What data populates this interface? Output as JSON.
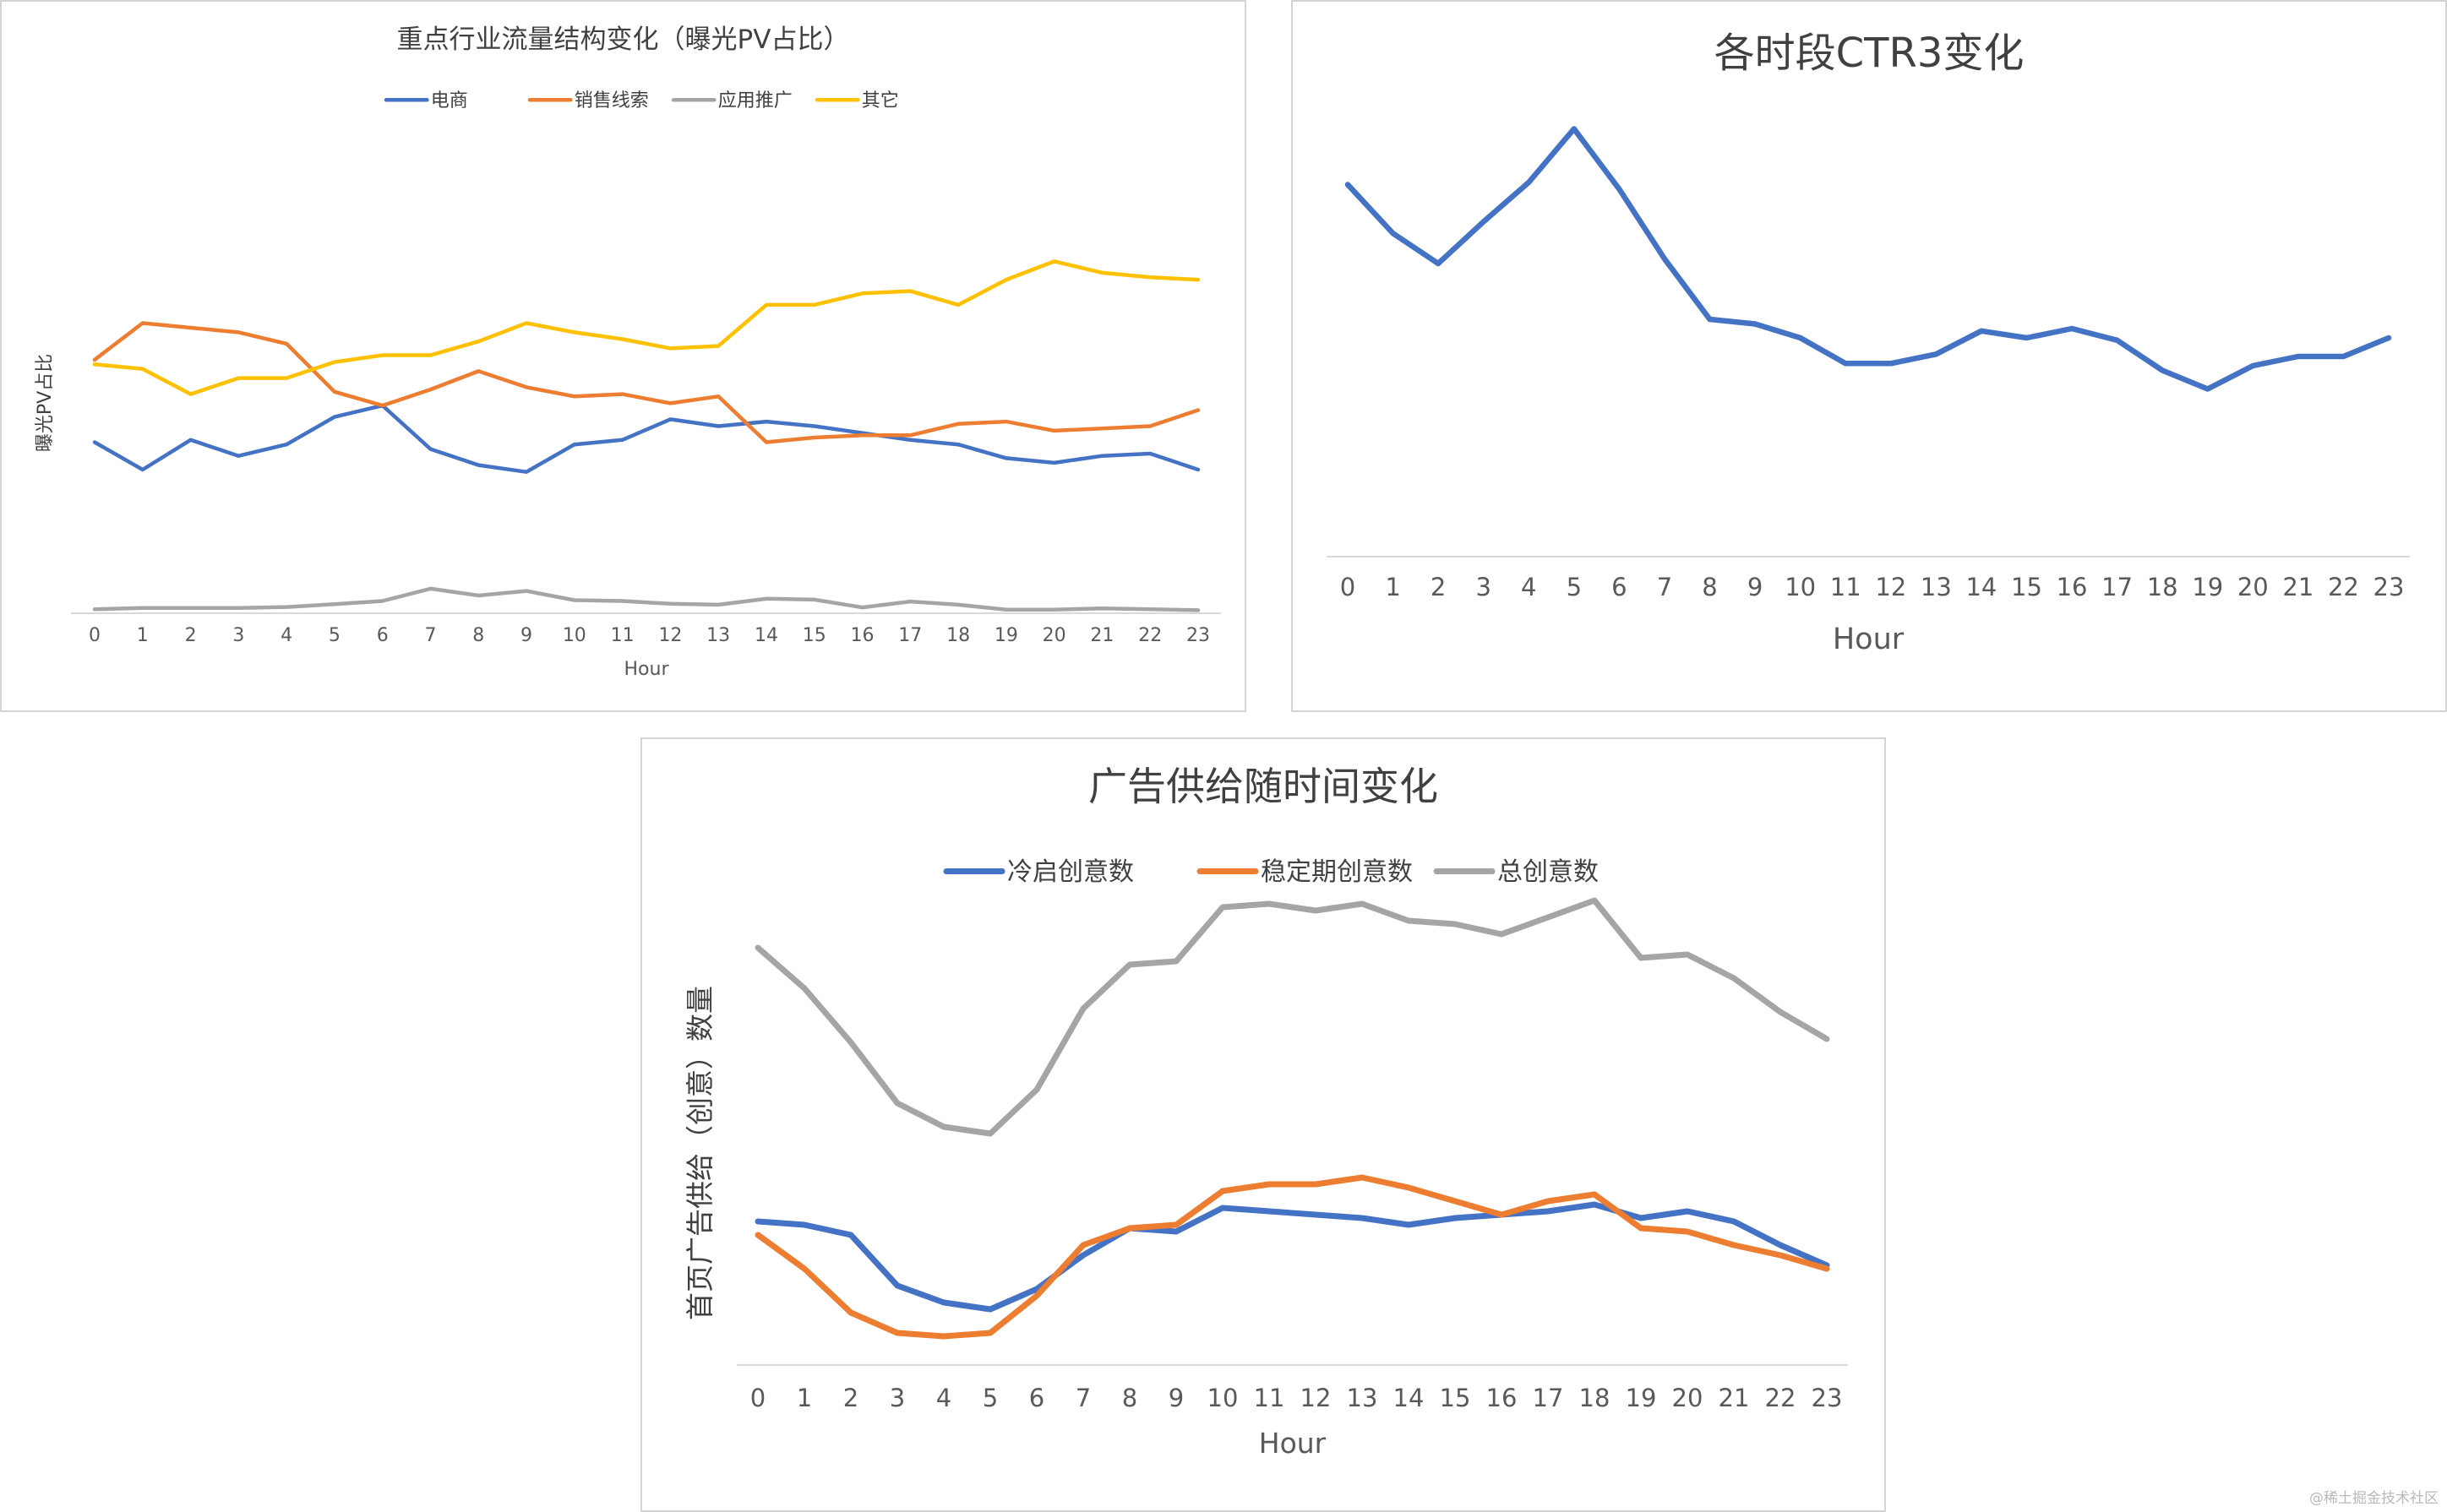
{
  "watermark": "@稀土掘金技术社区",
  "chart_data": [
    {
      "type": "line",
      "title": "重点行业流量结构变化（曝光PV占比）",
      "xlabel": "Hour",
      "ylabel": "曝光PV占比",
      "legend_position": "top",
      "grid": false,
      "categories": [
        "0",
        "1",
        "2",
        "3",
        "4",
        "5",
        "6",
        "7",
        "8",
        "9",
        "10",
        "11",
        "12",
        "13",
        "14",
        "15",
        "16",
        "17",
        "18",
        "19",
        "20",
        "21",
        "22",
        "23"
      ],
      "ylim": [
        0,
        100
      ],
      "series": [
        {
          "name": "电商",
          "color": "#4472C4",
          "values": [
            37,
            31,
            37.5,
            34,
            36.5,
            42.5,
            45,
            35.5,
            32,
            30.5,
            36.5,
            37.5,
            42,
            40.5,
            41.5,
            40.5,
            39,
            37.5,
            36.5,
            33.5,
            32.5,
            34,
            34.5,
            31
          ]
        },
        {
          "name": "销售线索",
          "color": "#ED7D31",
          "values": [
            55,
            63,
            62,
            61,
            58.5,
            48,
            45,
            48.5,
            52.5,
            49,
            47,
            47.5,
            45.5,
            47,
            37,
            38,
            38.5,
            38.5,
            41,
            41.5,
            39.5,
            40,
            40.5,
            44
          ]
        },
        {
          "name": "应用推广",
          "color": "#A5A5A5",
          "values": [
            0.5,
            0.8,
            0.8,
            0.8,
            1,
            1.6,
            2.3,
            5,
            3.5,
            4.5,
            2.5,
            2.3,
            1.7,
            1.5,
            2.8,
            2.6,
            0.9,
            2.2,
            1.5,
            0.4,
            0.4,
            0.7,
            0.5,
            0.3
          ]
        },
        {
          "name": "其它",
          "color": "#FFC000",
          "values": [
            54,
            53,
            47.5,
            51,
            51,
            54.5,
            56,
            56,
            59,
            63,
            61,
            59.5,
            57.5,
            58,
            67,
            67,
            69.5,
            70,
            67,
            72.5,
            76.5,
            74,
            73,
            72.5
          ]
        }
      ]
    },
    {
      "type": "line",
      "title": "各时段CTR3变化",
      "xlabel": "Hour",
      "ylabel": "",
      "grid": false,
      "categories": [
        "0",
        "1",
        "2",
        "3",
        "4",
        "5",
        "6",
        "7",
        "8",
        "9",
        "10",
        "11",
        "12",
        "13",
        "14",
        "15",
        "16",
        "17",
        "18",
        "19",
        "20",
        "21",
        "22",
        "23"
      ],
      "ylim": [
        0,
        100
      ],
      "series": [
        {
          "name": "CTR3",
          "color": "#4472C4",
          "values": [
            77,
            66.5,
            60,
            69,
            77.5,
            89,
            76,
            61,
            48,
            47,
            44,
            38.5,
            38.5,
            40.5,
            45.5,
            44,
            46,
            43.5,
            37,
            33,
            38,
            40,
            40,
            44
          ]
        }
      ]
    },
    {
      "type": "line",
      "title": "广告供给随时间变化",
      "xlabel": "Hour",
      "ylabel": "首页广告供给（创意）数量",
      "legend_position": "top",
      "grid": false,
      "categories": [
        "0",
        "1",
        "2",
        "3",
        "4",
        "5",
        "6",
        "7",
        "8",
        "9",
        "10",
        "11",
        "12",
        "13",
        "14",
        "15",
        "16",
        "17",
        "18",
        "19",
        "20",
        "21",
        "22",
        "23"
      ],
      "ylim": [
        0,
        100
      ],
      "series": [
        {
          "name": "冷启创意数",
          "color": "#4472C4",
          "values": [
            40.5,
            40,
            38.5,
            31,
            28.5,
            27.5,
            30.5,
            35.5,
            39.5,
            39,
            42.5,
            42,
            41.5,
            41,
            40,
            41,
            41.5,
            42,
            43,
            41,
            42,
            40.5,
            37,
            34
          ]
        },
        {
          "name": "稳定期创意数",
          "color": "#ED7D31",
          "values": [
            38.5,
            33.5,
            27,
            24,
            23.5,
            24,
            29.5,
            37,
            39.5,
            40,
            45,
            46,
            46,
            47,
            45.5,
            43.5,
            41.5,
            43.5,
            44.5,
            39.5,
            39,
            37,
            35.5,
            33.5
          ]
        },
        {
          "name": "总创意数",
          "color": "#A5A5A5",
          "values": [
            81,
            75,
            67,
            58,
            54.5,
            53.5,
            60,
            72,
            78.5,
            79,
            87,
            87.5,
            86.5,
            87.5,
            85,
            84.5,
            83,
            85.5,
            88,
            79.5,
            80,
            76.5,
            71.5,
            67.5
          ]
        }
      ]
    }
  ]
}
